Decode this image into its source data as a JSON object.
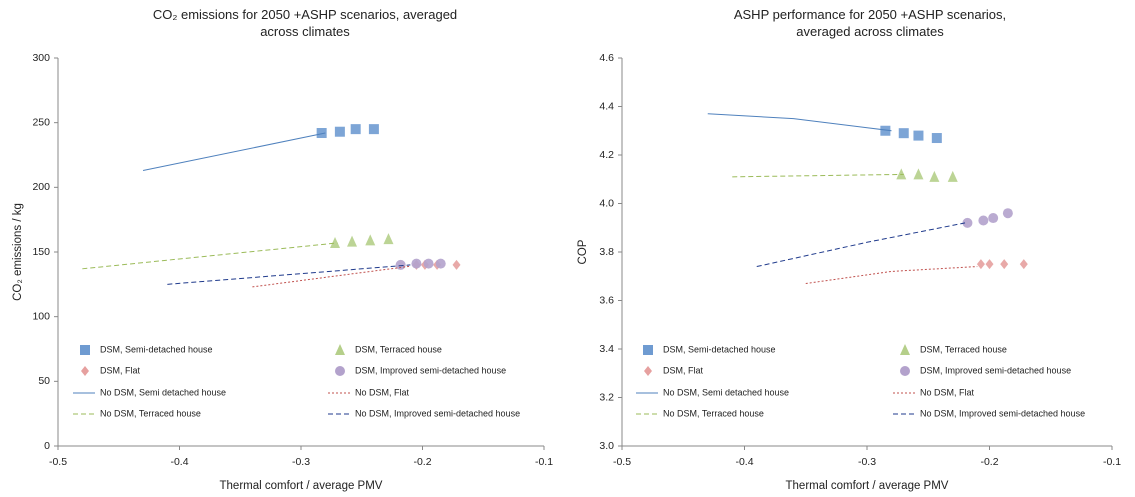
{
  "chart_data": [
    {
      "type": "scatter",
      "title": "CO₂ emissions for 2050 +ASHP scenarios, averaged across climates",
      "xlabel": "Thermal comfort / average PMV",
      "ylabel": "CO₂ emissions / kg",
      "xlim": [
        -0.5,
        -0.1
      ],
      "xticks": [
        -0.5,
        -0.4,
        -0.3,
        -0.2,
        -0.1
      ],
      "ylim": [
        0,
        300
      ],
      "yticks": [
        0,
        50,
        100,
        150,
        200,
        250,
        300
      ],
      "series": [
        {
          "name": "DSM, Semi-detached house",
          "color": "#6f9bd1",
          "marker": "square",
          "x": [
            -0.283,
            -0.268,
            -0.255,
            -0.24
          ],
          "values": [
            242,
            243,
            245,
            245
          ]
        },
        {
          "name": "DSM, Terraced house",
          "color": "#b5cf8a",
          "marker": "triangle",
          "x": [
            -0.272,
            -0.258,
            -0.243,
            -0.228
          ],
          "values": [
            157,
            158,
            159,
            160
          ]
        },
        {
          "name": "DSM, Flat",
          "color": "#e6a09f",
          "marker": "diamond",
          "x": [
            -0.205,
            -0.198,
            -0.188,
            -0.172
          ],
          "values": [
            140,
            140,
            140,
            140
          ]
        },
        {
          "name": "DSM, Improved semi-detached house",
          "color": "#b3a2cc",
          "marker": "circle",
          "x": [
            -0.218,
            -0.205,
            -0.195,
            -0.185
          ],
          "values": [
            140,
            141,
            141,
            141
          ]
        },
        {
          "name": "No DSM, Semi detached house",
          "color": "#4f81bd",
          "dash": "solid",
          "x": [
            -0.43,
            -0.28
          ],
          "values": [
            213,
            242
          ]
        },
        {
          "name": "No DSM, Flat",
          "color": "#c0504d",
          "dash": "dotted",
          "x": [
            -0.34,
            -0.21
          ],
          "values": [
            123,
            139
          ]
        },
        {
          "name": "No DSM, Terraced house",
          "color": "#9bbb59",
          "dash": "dashed",
          "x": [
            -0.48,
            -0.27
          ],
          "values": [
            137,
            157
          ]
        },
        {
          "name": "No DSM, Improved semi-detached house",
          "color": "#1f3a8c",
          "dash": "dashed",
          "x": [
            -0.41,
            -0.21
          ],
          "values": [
            125,
            140
          ]
        }
      ]
    },
    {
      "type": "scatter",
      "title": "ASHP performance for 2050 +ASHP scenarios, averaged across climates",
      "xlabel": "Thermal comfort / average PMV",
      "ylabel": "COP",
      "xlim": [
        -0.5,
        -0.1
      ],
      "xticks": [
        -0.5,
        -0.4,
        -0.3,
        -0.2,
        -0.1
      ],
      "ylim": [
        3,
        4.6
      ],
      "yticks": [
        {
          "value": 3,
          "label": "3.0"
        },
        3.2,
        3.4,
        3.6,
        3.8,
        {
          "value": 4,
          "label": "4.0"
        },
        4.2,
        4.4,
        4.6
      ],
      "series": [
        {
          "name": "DSM, Semi-detached house",
          "color": "#6f9bd1",
          "marker": "square",
          "x": [
            -0.285,
            -0.27,
            -0.258,
            -0.243
          ],
          "values": [
            4.3,
            4.29,
            4.28,
            4.27
          ]
        },
        {
          "name": "DSM, Terraced house",
          "color": "#b5cf8a",
          "marker": "triangle",
          "x": [
            -0.272,
            -0.258,
            -0.245,
            -0.23
          ],
          "values": [
            4.12,
            4.12,
            4.11,
            4.11
          ]
        },
        {
          "name": "DSM, Flat",
          "color": "#e6a09f",
          "marker": "diamond",
          "x": [
            -0.207,
            -0.2,
            -0.188,
            -0.172
          ],
          "values": [
            3.75,
            3.75,
            3.75,
            3.75
          ]
        },
        {
          "name": "DSM, Improved semi-detached house",
          "color": "#b3a2cc",
          "marker": "circle",
          "x": [
            -0.218,
            -0.205,
            -0.197,
            -0.185
          ],
          "values": [
            3.92,
            3.93,
            3.94,
            3.96
          ]
        },
        {
          "name": "No DSM, Semi detached house",
          "color": "#4f81bd",
          "dash": "solid",
          "x": [
            -0.43,
            -0.36,
            -0.28
          ],
          "values": [
            4.37,
            4.35,
            4.3
          ]
        },
        {
          "name": "No DSM, Flat",
          "color": "#c0504d",
          "dash": "dotted",
          "x": [
            -0.35,
            -0.28,
            -0.21
          ],
          "values": [
            3.67,
            3.72,
            3.74
          ]
        },
        {
          "name": "No DSM, Terraced house",
          "color": "#9bbb59",
          "dash": "dashed",
          "x": [
            -0.41,
            -0.27
          ],
          "values": [
            4.11,
            4.12
          ]
        },
        {
          "name": "No DSM, Improved semi-detached house",
          "color": "#1f3a8c",
          "dash": "dashed",
          "x": [
            -0.39,
            -0.3,
            -0.22
          ],
          "values": [
            3.74,
            3.84,
            3.92
          ]
        }
      ]
    }
  ]
}
